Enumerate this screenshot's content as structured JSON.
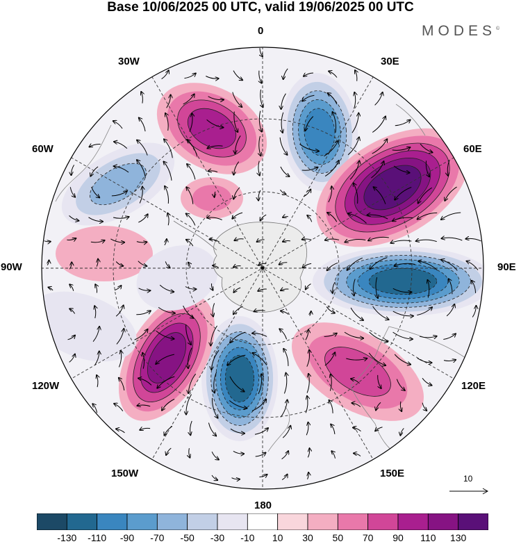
{
  "title": "Base 10/06/2025 00 UTC, valid 19/06/2025 00 UTC",
  "brand": "MODES",
  "brand_mark": "©",
  "longitude_labels": {
    "n0": "0",
    "e30": "30E",
    "e60": "60E",
    "e90": "90E",
    "e120": "120E",
    "e150": "150E",
    "s180": "180",
    "w150": "150W",
    "w120": "120W",
    "w90": "90W",
    "w60": "60W",
    "w30": "30W"
  },
  "reference_vector": "10",
  "colorbar": {
    "tick_labels": [
      "-130",
      "-110",
      "-90",
      "-70",
      "-50",
      "-30",
      "-10",
      "10",
      "30",
      "50",
      "70",
      "90",
      "110",
      "130"
    ],
    "colors": [
      "#1c4966",
      "#226890",
      "#3a86bf",
      "#5b9ccd",
      "#8fb4db",
      "#c2cfe6",
      "#e7e5f1",
      "#ffffff",
      "#f9d6dc",
      "#f4aec2",
      "#e978aa",
      "#d14698",
      "#a91f8f",
      "#861383",
      "#5a1078"
    ]
  },
  "anomaly_centers": [
    {
      "sign": "positive",
      "lon_label": "30W",
      "level": 90
    },
    {
      "sign": "negative",
      "lon_label": "30E",
      "level": -110
    },
    {
      "sign": "positive",
      "lon_label": "60E",
      "level": 130
    },
    {
      "sign": "negative",
      "lon_label": "90E",
      "level": -130
    },
    {
      "sign": "positive",
      "lon_label": "120E",
      "level": 90
    },
    {
      "sign": "negative",
      "lon_label": "180",
      "level": -130
    },
    {
      "sign": "positive",
      "lon_label": "150W",
      "level": 110
    },
    {
      "sign": "negative",
      "lon_label": "60W",
      "level": -70
    }
  ]
}
